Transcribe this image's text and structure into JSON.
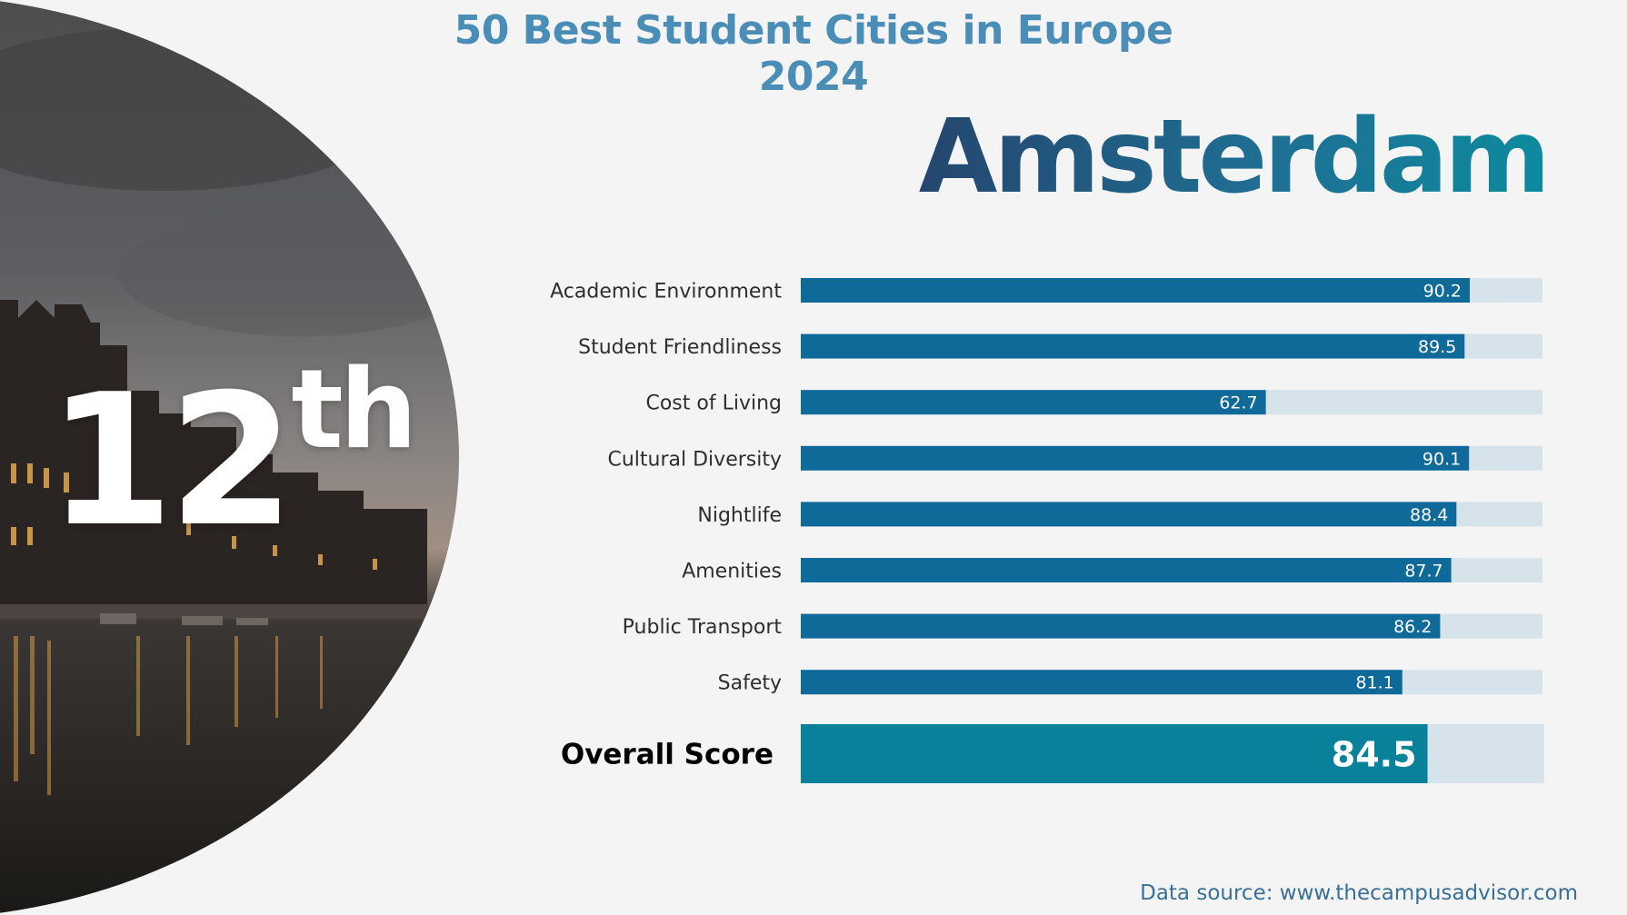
{
  "header": {
    "title": "50 Best Student Cities in Europe 2024"
  },
  "city": {
    "name": "Amsterdam",
    "rank_number": "12",
    "rank_suffix": "th"
  },
  "colors": {
    "bar": "#0f6a9a",
    "track": "#d6e3eb",
    "overall_bar": "#0a819b",
    "title": "#4a8db6"
  },
  "chart_data": {
    "type": "bar",
    "orientation": "horizontal",
    "categories": [
      "Academic Environment",
      "Student Friendliness",
      "Cost of Living",
      "Cultural Diversity",
      "Nightlife",
      "Amenities",
      "Public Transport",
      "Safety"
    ],
    "values": [
      90.2,
      89.5,
      62.7,
      90.1,
      88.4,
      87.7,
      86.2,
      81.1
    ],
    "value_labels": [
      "90.2",
      "89.5",
      "62.7",
      "90.1",
      "88.4",
      "87.7",
      "86.2",
      "81.1"
    ],
    "xlim": [
      0,
      100
    ],
    "overall": {
      "label": "Overall Score",
      "value": 84.5,
      "value_label": "84.5"
    },
    "grid": false
  },
  "footer": {
    "source": "Data source: www.thecampusadvisor.com"
  }
}
